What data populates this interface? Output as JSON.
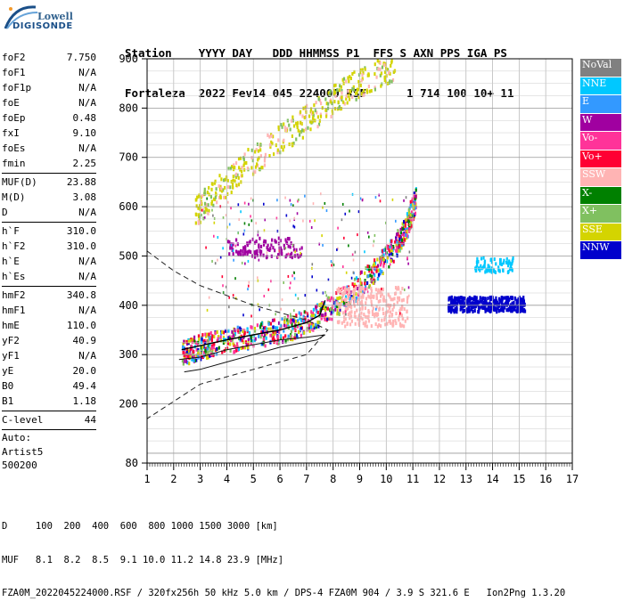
{
  "logo": {
    "line1": "Lowell",
    "line2": "DIGISONDE"
  },
  "header": {
    "line1": "Station    YYYY DAY   DDD HHMMSS P1  FFS S AXN PPS IGA PS",
    "line2": "Fortaleza  2022 Fev14 045 224000 RSF      1 714 100 10+ 11"
  },
  "params": {
    "group1": [
      {
        "label": "foF2",
        "value": "7.750"
      },
      {
        "label": "foF1",
        "value": "N/A"
      },
      {
        "label": "foF1p",
        "value": "N/A"
      },
      {
        "label": "foE",
        "value": "N/A"
      },
      {
        "label": "foEp",
        "value": "0.48"
      },
      {
        "label": "fxI",
        "value": "9.10"
      },
      {
        "label": "foEs",
        "value": "N/A"
      },
      {
        "label": "fmin",
        "value": "2.25"
      }
    ],
    "group2": [
      {
        "label": "MUF(D)",
        "value": "23.88"
      },
      {
        "label": "M(D)",
        "value": "3.08"
      },
      {
        "label": "D",
        "value": "N/A"
      }
    ],
    "group3": [
      {
        "label": "h`F",
        "value": "310.0"
      },
      {
        "label": "h`F2",
        "value": "310.0"
      },
      {
        "label": "h`E",
        "value": "N/A"
      },
      {
        "label": "h`Es",
        "value": "N/A"
      }
    ],
    "group4": [
      {
        "label": "hmF2",
        "value": "340.8"
      },
      {
        "label": "hmF1",
        "value": "N/A"
      },
      {
        "label": "hmE",
        "value": "110.0"
      },
      {
        "label": "yF2",
        "value": "40.9"
      },
      {
        "label": "yF1",
        "value": "N/A"
      },
      {
        "label": "yE",
        "value": "20.0"
      },
      {
        "label": "B0",
        "value": "49.4"
      },
      {
        "label": "B1",
        "value": "1.18"
      }
    ],
    "group5": [
      {
        "label": "C-level",
        "value": "44"
      }
    ],
    "autoscale": {
      "line1": "Auto:",
      "line2": "Artist5",
      "line3": "500200"
    }
  },
  "legend": [
    {
      "label": "NoVal",
      "color": "#808080"
    },
    {
      "label": "NNE",
      "color": "#00c8ff"
    },
    {
      "label": "E",
      "color": "#3399ff"
    },
    {
      "label": "W",
      "color": "#a000a0"
    },
    {
      "label": "Vo-",
      "color": "#ff3399"
    },
    {
      "label": "Vo+",
      "color": "#ff0033"
    },
    {
      "label": "SSW",
      "color": "#ffb4b4"
    },
    {
      "label": "X-",
      "color": "#008000"
    },
    {
      "label": "X+",
      "color": "#80c060"
    },
    {
      "label": "SSE",
      "color": "#d4d400"
    },
    {
      "label": "NNW",
      "color": "#0000cc"
    }
  ],
  "footer": {
    "d_row": "D     100  200  400  600  800 1000 1500 3000 [km]",
    "muf_row": "MUF   8.1  8.2  8.5  9.1 10.0 11.2 14.8 23.9 [MHz]",
    "info_row": "FZA0M_2022045224000.RSF / 320fx256h 50 kHz 5.0 km / DPS-4 FZA0M 904 / 3.9 S 321.6 E   Ion2Png 1.3.20"
  },
  "chart_data": {
    "type": "scatter",
    "xlim": [
      1,
      17
    ],
    "ylim": [
      80,
      900
    ],
    "x_ticks": [
      "1",
      "2",
      "3",
      "4",
      "5",
      "6",
      "7",
      "8",
      "9",
      "10",
      "11",
      "12",
      "13",
      "14",
      "15",
      "16",
      "17"
    ],
    "y_ticks": [
      "80",
      "200",
      "300",
      "400",
      "500",
      "600",
      "700",
      "800",
      "900"
    ],
    "grid": true,
    "legend_position": "right",
    "profile_curve": [
      [
        2.3,
        310
      ],
      [
        3,
        318
      ],
      [
        4,
        330
      ],
      [
        5,
        340
      ],
      [
        6,
        350
      ],
      [
        7,
        365
      ],
      [
        7.5,
        380
      ],
      [
        7.7,
        410
      ]
    ],
    "dashed_curve": [
      [
        1,
        510
      ],
      [
        2,
        470
      ],
      [
        3,
        440
      ],
      [
        4,
        420
      ],
      [
        5,
        400
      ],
      [
        6,
        385
      ],
      [
        7,
        370
      ],
      [
        7.8,
        350
      ],
      [
        7,
        300
      ],
      [
        5,
        270
      ],
      [
        3,
        240
      ],
      [
        1,
        170
      ]
    ],
    "solid_curve": [
      [
        2.2,
        290
      ],
      [
        3,
        295
      ],
      [
        4,
        310
      ],
      [
        5,
        320
      ],
      [
        6,
        330
      ],
      [
        7,
        335
      ],
      [
        7.7,
        340
      ],
      [
        7.4,
        330
      ],
      [
        6,
        315
      ],
      [
        5,
        300
      ],
      [
        4,
        285
      ],
      [
        3,
        270
      ],
      [
        2.4,
        265
      ]
    ],
    "trace_o": [
      [
        2.3,
        305
      ],
      [
        2.8,
        315
      ],
      [
        3.5,
        325
      ],
      [
        4.5,
        335
      ],
      [
        5.5,
        345
      ],
      [
        6.5,
        360
      ],
      [
        7.5,
        385
      ],
      [
        8.5,
        420
      ],
      [
        9.5,
        470
      ],
      [
        10.3,
        520
      ],
      [
        10.8,
        570
      ],
      [
        11.1,
        620
      ]
    ],
    "trace_high": [
      [
        2.8,
        590
      ],
      [
        3.5,
        630
      ],
      [
        4.5,
        680
      ],
      [
        5.5,
        720
      ],
      [
        6.5,
        760
      ],
      [
        7.5,
        800
      ],
      [
        8.5,
        840
      ],
      [
        9.5,
        870
      ],
      [
        10.3,
        890
      ]
    ],
    "clusters": [
      {
        "name": "NNW",
        "x": [
          12.3,
          15.2
        ],
        "y": [
          390,
          420
        ]
      },
      {
        "name": "SSW",
        "x": [
          8.1,
          10.8
        ],
        "y": [
          360,
          440
        ]
      },
      {
        "name": "NNE",
        "x": [
          13.3,
          14.8
        ],
        "y": [
          470,
          500
        ]
      },
      {
        "name": "W",
        "x": [
          4,
          6.8
        ],
        "y": [
          500,
          540
        ]
      }
    ]
  }
}
